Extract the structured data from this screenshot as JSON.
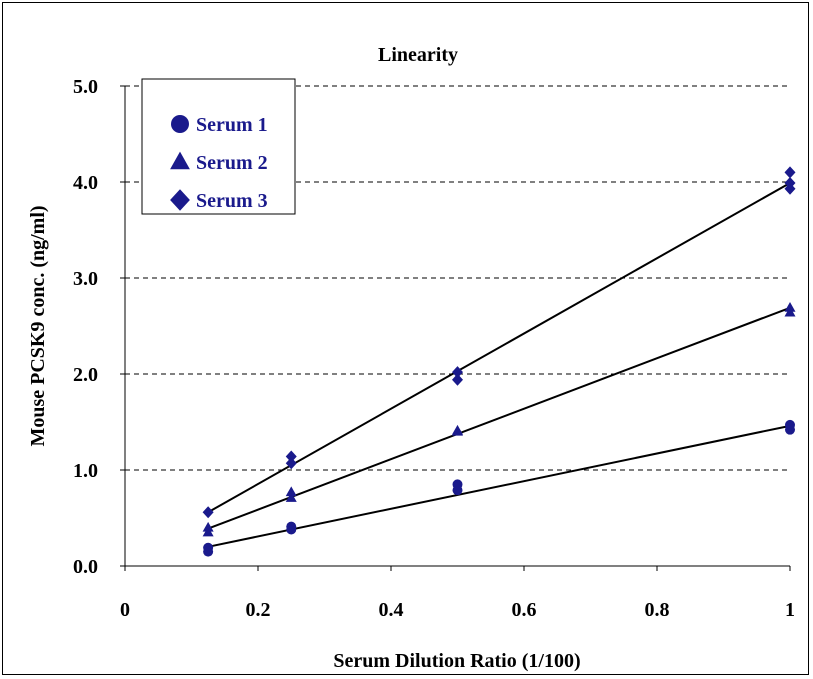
{
  "chart_data": {
    "type": "scatter",
    "title": "Linearity",
    "xlabel": "Serum Dilution Ratio (1/100)",
    "ylabel": "Mouse PCSK9 conc. (ng/ml)",
    "xlim": [
      0,
      1
    ],
    "ylim": [
      0,
      5
    ],
    "xticks": [
      0,
      0.2,
      0.4,
      0.6,
      0.8,
      1
    ],
    "xtick_labels": [
      "0",
      "0.2",
      "0.4",
      "0.6",
      "0.8",
      "1"
    ],
    "yticks": [
      0,
      1,
      2,
      3,
      4,
      5
    ],
    "ytick_labels": [
      "0.0",
      "1.0",
      "2.0",
      "3.0",
      "4.0",
      "5.0"
    ],
    "grid": "horizontal dashed",
    "legend_position": "top-left",
    "marker_color": "#1a1a8c",
    "series": [
      {
        "name": "Serum 1",
        "marker": "circle",
        "points": [
          [
            0.125,
            0.15
          ],
          [
            0.125,
            0.19
          ],
          [
            0.25,
            0.38
          ],
          [
            0.25,
            0.41
          ],
          [
            0.5,
            0.79
          ],
          [
            0.5,
            0.85
          ],
          [
            1,
            1.42
          ],
          [
            1,
            1.47
          ]
        ],
        "fit": [
          [
            0.125,
            0.2
          ],
          [
            1,
            1.46
          ]
        ]
      },
      {
        "name": "Serum 2",
        "marker": "triangle",
        "points": [
          [
            0.125,
            0.35
          ],
          [
            0.125,
            0.4
          ],
          [
            0.25,
            0.71
          ],
          [
            0.25,
            0.77
          ],
          [
            0.5,
            1.4
          ],
          [
            0.5,
            1.41
          ],
          [
            1,
            2.64
          ],
          [
            1,
            2.69
          ]
        ],
        "fit": [
          [
            0.125,
            0.39
          ],
          [
            1,
            2.69
          ]
        ]
      },
      {
        "name": "Serum 3",
        "marker": "diamond",
        "points": [
          [
            0.125,
            0.56
          ],
          [
            0.25,
            1.07
          ],
          [
            0.25,
            1.14
          ],
          [
            0.5,
            1.94
          ],
          [
            0.5,
            2.02
          ],
          [
            1,
            3.93
          ],
          [
            1,
            3.99
          ],
          [
            1,
            4.1
          ]
        ],
        "fit": [
          [
            0.125,
            0.56
          ],
          [
            1,
            3.99
          ]
        ]
      }
    ]
  }
}
